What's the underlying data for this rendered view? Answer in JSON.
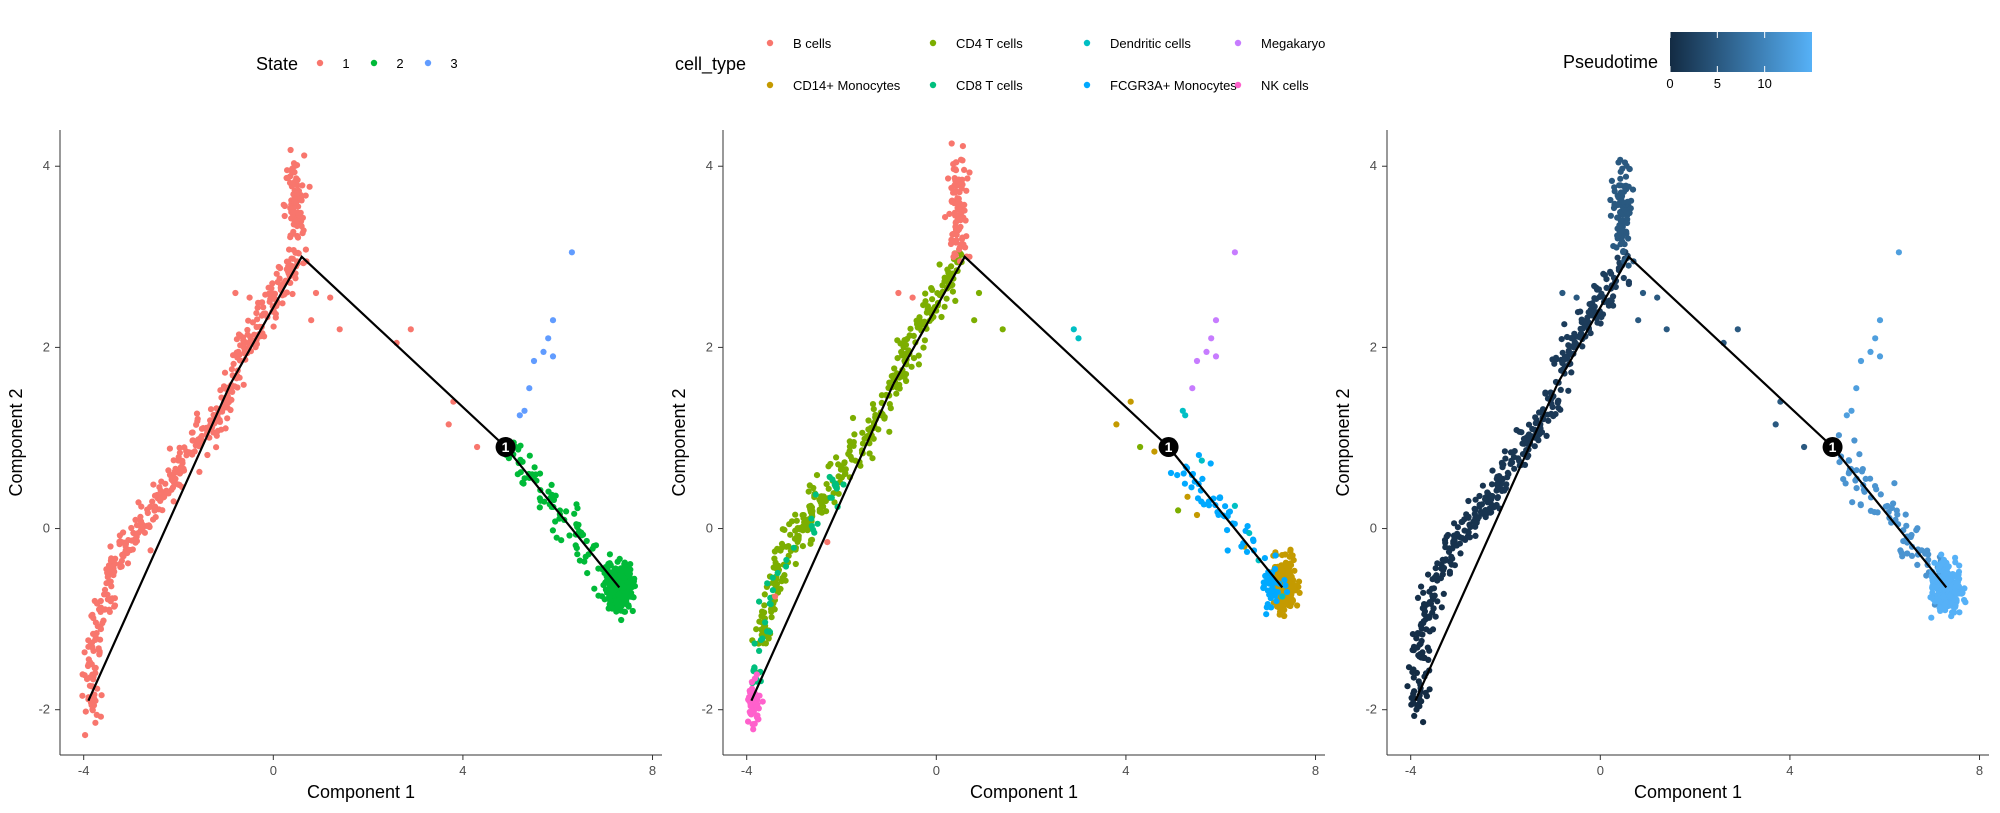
{
  "chart_data": [
    {
      "type": "scatter",
      "panel": "state",
      "xlabel": "Component 1",
      "ylabel": "Component 2",
      "xlim": [
        -4.5,
        8.2
      ],
      "ylim": [
        -2.5,
        4.4
      ],
      "xticks": [
        -4,
        0,
        4,
        8
      ],
      "yticks": [
        -2,
        0,
        2,
        4
      ],
      "grid": false,
      "legend": {
        "title": "State",
        "placement": "top",
        "entries": [
          {
            "label": "1",
            "color": "#F8766D"
          },
          {
            "label": "2",
            "color": "#00BA38"
          },
          {
            "label": "3",
            "color": "#619CFF"
          }
        ]
      },
      "trajectory": {
        "edges": [
          [
            [
              -3.9,
              -1.9
            ],
            [
              -0.9,
              1.6
            ],
            [
              0.6,
              3.0
            ],
            [
              4.9,
              0.9
            ],
            [
              7.3,
              -0.65
            ]
          ]
        ],
        "branch_points": [
          {
            "label": "1",
            "x": 4.9,
            "y": 0.9
          }
        ]
      },
      "series": [
        {
          "name": "1",
          "color": "#F8766D",
          "backbone": [
            [
              -3.85,
              -2.05
            ],
            [
              -3.8,
              -1.2
            ],
            [
              -3.3,
              -0.35
            ],
            [
              -2.3,
              0.4
            ],
            [
              -1.2,
              1.2
            ],
            [
              -0.5,
              2.1
            ],
            [
              0.5,
              2.95
            ]
          ],
          "n": 420,
          "spread": 0.1
        },
        {
          "name": "1",
          "color": "#F8766D",
          "cluster": {
            "x": 0.45,
            "y": 3.55,
            "sx": 0.1,
            "sy": 0.28,
            "n": 90
          }
        },
        {
          "name": "1",
          "color": "#F8766D",
          "scatter": [
            [
              0.5,
              2.95
            ],
            [
              0.7,
              2.95
            ],
            [
              0.9,
              2.6
            ],
            [
              1.2,
              2.55
            ],
            [
              0.8,
              2.3
            ],
            [
              1.4,
              2.2
            ],
            [
              2.9,
              2.2
            ],
            [
              2.6,
              2.05
            ],
            [
              -0.5,
              2.55
            ],
            [
              -0.8,
              2.6
            ],
            [
              3.8,
              1.4
            ],
            [
              3.7,
              1.15
            ],
            [
              4.3,
              0.9
            ]
          ]
        },
        {
          "name": "2",
          "color": "#00BA38",
          "backbone": [
            [
              4.9,
              0.9
            ],
            [
              5.6,
              0.5
            ],
            [
              6.3,
              0.05
            ],
            [
              6.9,
              -0.35
            ],
            [
              7.3,
              -0.65
            ]
          ],
          "n": 90,
          "spread": 0.12
        },
        {
          "name": "2",
          "color": "#00BA38",
          "cluster": {
            "x": 7.3,
            "y": -0.65,
            "sx": 0.14,
            "sy": 0.12,
            "n": 320
          }
        },
        {
          "name": "3",
          "color": "#619CFF",
          "scatter": [
            [
              6.3,
              3.05
            ],
            [
              5.9,
              2.3
            ],
            [
              5.8,
              2.1
            ],
            [
              5.7,
              1.95
            ],
            [
              5.9,
              1.9
            ],
            [
              5.5,
              1.85
            ],
            [
              5.4,
              1.55
            ],
            [
              5.3,
              1.3
            ],
            [
              5.2,
              1.25
            ]
          ]
        }
      ]
    },
    {
      "type": "scatter",
      "panel": "cell_type",
      "xlabel": "Component 1",
      "ylabel": "Component 2",
      "xlim": [
        -4.5,
        8.2
      ],
      "ylim": [
        -2.5,
        4.4
      ],
      "xticks": [
        -4,
        0,
        4,
        8
      ],
      "yticks": [
        -2,
        0,
        2,
        4
      ],
      "grid": false,
      "legend": {
        "title": "cell_type",
        "placement": "top",
        "entries": [
          {
            "label": "B cells",
            "color": "#F8766D"
          },
          {
            "label": "CD14+ Monocytes",
            "color": "#C49A00"
          },
          {
            "label": "CD4 T cells",
            "color": "#7CAE00"
          },
          {
            "label": "CD8 T cells",
            "color": "#00BF7D"
          },
          {
            "label": "Dendritic cells",
            "color": "#00BFC4"
          },
          {
            "label": "FCGR3A+ Monocytes",
            "color": "#00A9FF"
          },
          {
            "label": "Megakaryo",
            "color": "#C77CFF"
          },
          {
            "label": "NK cells",
            "color": "#FF61CC"
          }
        ]
      },
      "trajectory": {
        "edges": [
          [
            [
              -3.9,
              -1.9
            ],
            [
              -0.9,
              1.6
            ],
            [
              0.6,
              3.0
            ],
            [
              4.9,
              0.9
            ],
            [
              7.3,
              -0.65
            ]
          ]
        ],
        "branch_points": [
          {
            "label": "1",
            "x": 4.9,
            "y": 0.9
          }
        ]
      },
      "series": [
        {
          "name": "CD4 T cells",
          "color": "#7CAE00",
          "backbone": [
            [
              -3.7,
              -1.3
            ],
            [
              -3.3,
              -0.35
            ],
            [
              -2.3,
              0.4
            ],
            [
              -1.2,
              1.2
            ],
            [
              -0.5,
              2.1
            ],
            [
              0.5,
              2.95
            ]
          ],
          "n": 360,
          "spread": 0.1
        },
        {
          "name": "CD8 T cells",
          "color": "#00BF7D",
          "backbone": [
            [
              -3.85,
              -1.75
            ],
            [
              -3.6,
              -0.9
            ],
            [
              -3.0,
              -0.2
            ],
            [
              -2.0,
              0.55
            ]
          ],
          "n": 45,
          "spread": 0.09
        },
        {
          "name": "NK cells",
          "color": "#FF61CC",
          "cluster": {
            "x": -3.85,
            "y": -1.92,
            "sx": 0.06,
            "sy": 0.14,
            "n": 55
          }
        },
        {
          "name": "B cells",
          "color": "#F8766D",
          "cluster": {
            "x": 0.45,
            "y": 3.55,
            "sx": 0.1,
            "sy": 0.28,
            "n": 90
          }
        },
        {
          "name": "B cells",
          "color": "#F8766D",
          "scatter": [
            [
              0.5,
              2.95
            ],
            [
              0.7,
              3.0
            ],
            [
              -0.5,
              2.55
            ],
            [
              -0.8,
              2.6
            ],
            [
              -2.3,
              -0.15
            ],
            [
              -3.4,
              -0.75
            ]
          ]
        },
        {
          "name": "CD14+ Monocytes",
          "color": "#C49A00",
          "cluster": {
            "x": 7.35,
            "y": -0.62,
            "sx": 0.12,
            "sy": 0.13,
            "n": 280
          }
        },
        {
          "name": "CD14+ Monocytes",
          "color": "#C49A00",
          "scatter": [
            [
              4.1,
              1.4
            ],
            [
              3.8,
              1.15
            ],
            [
              4.6,
              0.85
            ],
            [
              5.3,
              0.35
            ],
            [
              5.5,
              0.15
            ],
            [
              6.5,
              -0.2
            ]
          ]
        },
        {
          "name": "FCGR3A+ Monocytes",
          "color": "#00A9FF",
          "backbone": [
            [
              5.0,
              0.8
            ],
            [
              5.8,
              0.35
            ],
            [
              6.5,
              -0.1
            ],
            [
              7.1,
              -0.55
            ]
          ],
          "n": 50,
          "spread": 0.1
        },
        {
          "name": "FCGR3A+ Monocytes",
          "color": "#00A9FF",
          "cluster": {
            "x": 7.05,
            "y": -0.68,
            "sx": 0.12,
            "sy": 0.1,
            "n": 35
          }
        },
        {
          "name": "Dendritic cells",
          "color": "#00BFC4",
          "scatter": [
            [
              2.9,
              2.2
            ],
            [
              3.0,
              2.1
            ],
            [
              5.2,
              1.3
            ],
            [
              5.25,
              1.25
            ],
            [
              5.6,
              0.75
            ],
            [
              6.3,
              0.25
            ],
            [
              6.6,
              -0.05
            ],
            [
              6.8,
              -0.35
            ],
            [
              7.3,
              -0.75
            ]
          ]
        },
        {
          "name": "Megakaryo",
          "color": "#C77CFF",
          "scatter": [
            [
              6.3,
              3.05
            ],
            [
              5.9,
              2.3
            ],
            [
              5.8,
              2.1
            ],
            [
              5.7,
              1.95
            ],
            [
              5.9,
              1.9
            ],
            [
              5.5,
              1.85
            ],
            [
              5.4,
              1.55
            ]
          ]
        },
        {
          "name": "CD4 T cells",
          "color": "#7CAE00",
          "scatter": [
            [
              0.9,
              2.6
            ],
            [
              1.4,
              2.2
            ],
            [
              0.8,
              2.3
            ],
            [
              4.3,
              0.9
            ],
            [
              5.1,
              0.2
            ]
          ]
        }
      ]
    },
    {
      "type": "scatter",
      "panel": "pseudotime",
      "xlabel": "Component 1",
      "ylabel": "Component 2",
      "xlim": [
        -4.5,
        8.2
      ],
      "ylim": [
        -2.5,
        4.4
      ],
      "xticks": [
        -4,
        0,
        4,
        8
      ],
      "yticks": [
        -2,
        0,
        2,
        4
      ],
      "grid": false,
      "legend": {
        "title": "Pseudotime",
        "placement": "top",
        "type": "colorbar",
        "range": [
          0,
          15
        ],
        "ticks": [
          "0",
          "5",
          "10"
        ],
        "low_color": "#132B43",
        "high_color": "#56B1F7"
      },
      "trajectory": {
        "edges": [
          [
            [
              -3.9,
              -1.9
            ],
            [
              -0.9,
              1.6
            ],
            [
              0.6,
              3.0
            ],
            [
              4.9,
              0.9
            ],
            [
              7.3,
              -0.65
            ]
          ]
        ],
        "branch_points": [
          {
            "label": "1",
            "x": 4.9,
            "y": 0.9
          }
        ]
      },
      "series": [
        {
          "name": "",
          "color": "#132B43",
          "backbone": [
            [
              -3.85,
              -2.05
            ],
            [
              -3.8,
              -1.2
            ],
            [
              -3.3,
              -0.35
            ],
            [
              -2.3,
              0.4
            ],
            [
              -1.2,
              1.2
            ],
            [
              -0.5,
              2.1
            ],
            [
              0.5,
              2.95
            ]
          ],
          "n": 420,
          "spread": 0.1,
          "gradient": [
            "#132B43",
            "#1e3f5f"
          ]
        },
        {
          "name": "",
          "color": "#2A5980",
          "cluster": {
            "x": 0.45,
            "y": 3.55,
            "sx": 0.1,
            "sy": 0.28,
            "n": 90
          }
        },
        {
          "name": "",
          "color": "#2A5980",
          "scatter": [
            [
              0.5,
              2.95
            ],
            [
              0.7,
              2.95
            ],
            [
              0.9,
              2.6
            ],
            [
              1.2,
              2.55
            ],
            [
              0.8,
              2.3
            ],
            [
              1.4,
              2.2
            ],
            [
              2.9,
              2.2
            ],
            [
              2.6,
              2.05
            ],
            [
              -0.5,
              2.55
            ],
            [
              -0.8,
              2.6
            ],
            [
              3.8,
              1.4
            ],
            [
              3.7,
              1.15
            ],
            [
              4.3,
              0.9
            ]
          ]
        },
        {
          "name": "",
          "color": "#4B94D0",
          "backbone": [
            [
              4.9,
              0.9
            ],
            [
              5.6,
              0.5
            ],
            [
              6.3,
              0.05
            ],
            [
              6.9,
              -0.35
            ],
            [
              7.3,
              -0.65
            ]
          ],
          "n": 90,
          "spread": 0.12
        },
        {
          "name": "",
          "color": "#56B1F7",
          "cluster": {
            "x": 7.3,
            "y": -0.65,
            "sx": 0.14,
            "sy": 0.12,
            "n": 320
          }
        },
        {
          "name": "",
          "color": "#4F9FDE",
          "scatter": [
            [
              6.3,
              3.05
            ],
            [
              5.9,
              2.3
            ],
            [
              5.8,
              2.1
            ],
            [
              5.7,
              1.95
            ],
            [
              5.9,
              1.9
            ],
            [
              5.5,
              1.85
            ],
            [
              5.4,
              1.55
            ],
            [
              5.3,
              1.3
            ],
            [
              5.2,
              1.25
            ]
          ]
        }
      ]
    }
  ]
}
